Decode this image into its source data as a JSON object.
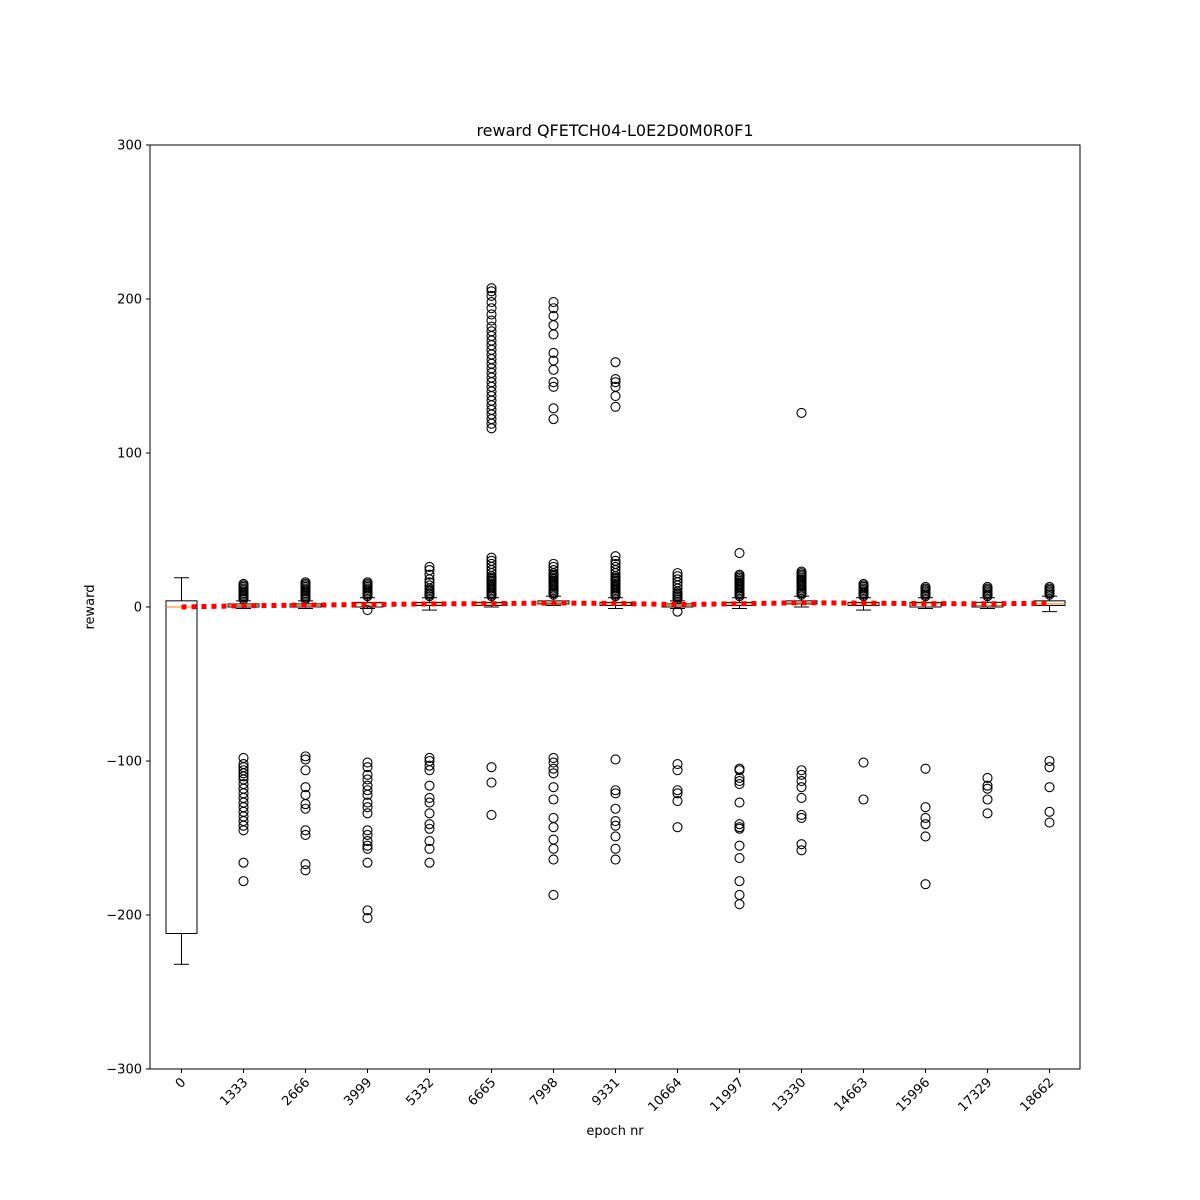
{
  "chart_data": {
    "type": "box",
    "title": "reward QFETCH04-L0E2D0M0R0F1",
    "xlabel": "epoch nr",
    "ylabel": "reward",
    "ylim": [
      -300,
      300
    ],
    "yticks": [
      -300,
      -200,
      -100,
      0,
      100,
      200,
      300
    ],
    "yticklabels": [
      "−300",
      "−200",
      "−100",
      "0",
      "100",
      "200",
      "300"
    ],
    "categories": [
      "0",
      "1333",
      "2666",
      "3999",
      "5332",
      "6665",
      "7998",
      "9331",
      "10664",
      "11997",
      "13330",
      "14663",
      "15996",
      "17329",
      "18662"
    ],
    "grid": false,
    "colors": {
      "box": "#000000",
      "median": "#ff7f0e",
      "mean_line": "#ff0000",
      "flier": "#000000"
    },
    "boxes": [
      {
        "category": "0",
        "whislo": -232,
        "q1": -212,
        "med": 0,
        "q3": 4,
        "whishi": 19,
        "fliers": []
      },
      {
        "category": "1333",
        "whislo": -1,
        "q1": 0,
        "med": 1,
        "q3": 2,
        "whishi": 4,
        "fliers": [
          5,
          6,
          7,
          8,
          9,
          10,
          11,
          12,
          13,
          14,
          15,
          -98,
          -102,
          -104,
          -106,
          -108,
          -110,
          -112,
          -115,
          -118,
          -121,
          -124,
          -127,
          -130,
          -133,
          -136,
          -139,
          -142,
          -145,
          -166,
          -178
        ]
      },
      {
        "category": "2666",
        "whislo": -1,
        "q1": 0,
        "med": 1,
        "q3": 2,
        "whishi": 4,
        "fliers": [
          5,
          6,
          7,
          8,
          9,
          10,
          11,
          12,
          13,
          14,
          15,
          16,
          -97,
          -99,
          -106,
          -117,
          -122,
          -128,
          -131,
          -145,
          -148,
          -167,
          -171
        ]
      },
      {
        "category": "3999",
        "whislo": -1,
        "q1": 0,
        "med": 2,
        "q3": 3,
        "whishi": 6,
        "fliers": [
          7,
          8,
          9,
          10,
          11,
          12,
          13,
          14,
          15,
          16,
          -2,
          -101,
          -104,
          -109,
          -112,
          -116,
          -119,
          -122,
          -127,
          -130,
          -134,
          -145,
          -148,
          -152,
          -155,
          -157,
          -166,
          -197,
          -202
        ]
      },
      {
        "category": "5332",
        "whislo": -2,
        "q1": 1,
        "med": 2,
        "q3": 3,
        "whishi": 6,
        "fliers": [
          7,
          8,
          9,
          10,
          11,
          12,
          14,
          16,
          18,
          21,
          24,
          26,
          -98,
          -100,
          -103,
          -106,
          -116,
          -124,
          -127,
          -134,
          -141,
          -144,
          -152,
          -157,
          -166
        ]
      },
      {
        "category": "6665",
        "whislo": 0,
        "q1": 1,
        "med": 2,
        "q3": 3,
        "whishi": 6,
        "fliers": [
          7,
          8,
          9,
          10,
          11,
          12,
          13,
          14,
          15,
          16,
          17,
          18,
          19,
          20,
          22,
          24,
          26,
          28,
          30,
          32,
          116,
          119,
          122,
          125,
          128,
          131,
          134,
          137,
          140,
          143,
          146,
          149,
          152,
          155,
          158,
          161,
          164,
          167,
          170,
          173,
          176,
          179,
          182,
          186,
          190,
          194,
          198,
          202,
          205,
          207,
          -104,
          -114,
          -135
        ]
      },
      {
        "category": "7998",
        "whislo": 1,
        "q1": 2,
        "med": 3,
        "q3": 4,
        "whishi": 7,
        "fliers": [
          8,
          9,
          10,
          11,
          12,
          13,
          14,
          15,
          16,
          17,
          18,
          19,
          20,
          21,
          22,
          24,
          26,
          28,
          122,
          129,
          143,
          146,
          154,
          160,
          165,
          177,
          183,
          189,
          194,
          198,
          -98,
          -101,
          -105,
          -108,
          -117,
          -125,
          -137,
          -143,
          -151,
          -157,
          -164,
          -187
        ]
      },
      {
        "category": "9331",
        "whislo": -1,
        "q1": 1,
        "med": 2,
        "q3": 3,
        "whishi": 6,
        "fliers": [
          7,
          8,
          9,
          10,
          11,
          12,
          13,
          14,
          15,
          16,
          17,
          18,
          19,
          20,
          22,
          24,
          26,
          28,
          30,
          33,
          130,
          137,
          143,
          146,
          148,
          159,
          -99,
          -119,
          -121,
          -131,
          -139,
          -142,
          -149,
          -157,
          -164
        ]
      },
      {
        "category": "10664",
        "whislo": -1,
        "q1": 0,
        "med": 1,
        "q3": 2,
        "whishi": 4,
        "fliers": [
          5,
          6,
          7,
          8,
          9,
          10,
          12,
          14,
          16,
          18,
          20,
          22,
          -3,
          -102,
          -106,
          -119,
          -121,
          -126,
          -143
        ]
      },
      {
        "category": "11997",
        "whislo": -1,
        "q1": 1,
        "med": 2,
        "q3": 3,
        "whishi": 6,
        "fliers": [
          7,
          8,
          9,
          10,
          11,
          12,
          13,
          14,
          15,
          16,
          17,
          18,
          19,
          20,
          21,
          35,
          -105,
          -106,
          -111,
          -113,
          -115,
          -127,
          -141,
          -143,
          -144,
          -155,
          -163,
          -178,
          -187,
          -193
        ]
      },
      {
        "category": "13330",
        "whislo": 0,
        "q1": 2,
        "med": 3,
        "q3": 4,
        "whishi": 7,
        "fliers": [
          8,
          9,
          10,
          11,
          12,
          13,
          14,
          15,
          16,
          17,
          18,
          19,
          20,
          21,
          22,
          23,
          126,
          -106,
          -109,
          -113,
          -117,
          -124,
          -135,
          -137,
          -154,
          -158
        ]
      },
      {
        "category": "14663",
        "whislo": -2,
        "q1": 1,
        "med": 2,
        "q3": 3,
        "whishi": 6,
        "fliers": [
          7,
          8,
          9,
          10,
          11,
          12,
          13,
          14,
          15,
          -101,
          -125
        ]
      },
      {
        "category": "15996",
        "whislo": -1,
        "q1": 0,
        "med": 2,
        "q3": 3,
        "whishi": 6,
        "fliers": [
          7,
          8,
          9,
          10,
          11,
          12,
          13,
          -105,
          -130,
          -137,
          -141,
          -149,
          -180
        ]
      },
      {
        "category": "17329",
        "whislo": -1,
        "q1": 0,
        "med": 1,
        "q3": 3,
        "whishi": 6,
        "fliers": [
          7,
          8,
          9,
          10,
          11,
          12,
          13,
          -111,
          -116,
          -118,
          -125,
          -134
        ]
      },
      {
        "category": "18662",
        "whislo": -3,
        "q1": 1,
        "med": 2,
        "q3": 4,
        "whishi": 7,
        "fliers": [
          8,
          9,
          10,
          11,
          12,
          13,
          -100,
          -104,
          -117,
          -133,
          -140
        ]
      }
    ],
    "mean_line": {
      "style": "dotted",
      "values": [
        0,
        0.8,
        1.2,
        1.6,
        2,
        2.2,
        2.6,
        2.3,
        1.6,
        2.1,
        2.8,
        2.5,
        2.2,
        2.1,
        2.4
      ]
    }
  }
}
